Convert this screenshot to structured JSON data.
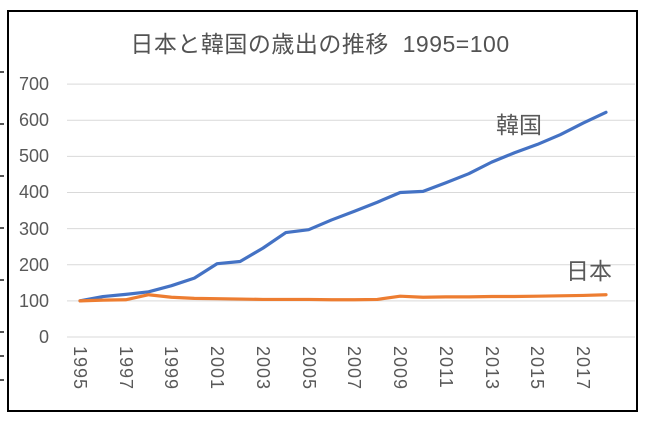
{
  "chart_data": {
    "type": "line",
    "title": "日本と韓国の歳出の推移  1995=100",
    "xlabel": "",
    "ylabel": "",
    "x": [
      1995,
      1996,
      1997,
      1998,
      1999,
      2000,
      2001,
      2002,
      2003,
      2004,
      2005,
      2006,
      2007,
      2008,
      2009,
      2010,
      2011,
      2012,
      2013,
      2014,
      2015,
      2016,
      2017,
      2018
    ],
    "x_tick_labels": [
      "1995",
      "1997",
      "1999",
      "2001",
      "2003",
      "2005",
      "2007",
      "2009",
      "2011",
      "2013",
      "2015",
      "2017"
    ],
    "y_ticks": [
      0,
      100,
      200,
      300,
      400,
      500,
      600,
      700
    ],
    "ylim": [
      0,
      700
    ],
    "grid": true,
    "legend_position": "inline-end-labels",
    "series": [
      {
        "name": "韓国",
        "color": "#4472C4",
        "values": [
          100,
          112,
          118,
          125,
          142,
          163,
          203,
          209,
          246,
          289,
          297,
          324,
          348,
          373,
          400,
          403,
          427,
          452,
          484,
          510,
          533,
          560,
          592,
          622
        ]
      },
      {
        "name": "日本",
        "color": "#ED7D31",
        "values": [
          100,
          102,
          103,
          117,
          110,
          107,
          106,
          105,
          104,
          104,
          104,
          103,
          103,
          104,
          113,
          110,
          111,
          111,
          112,
          112,
          113,
          114,
          115,
          117
        ]
      }
    ]
  },
  "styles": {
    "text_color": "#595959",
    "title_color": "#535353",
    "gridline_color": "#D9D9D9",
    "frame_color": "#000000",
    "background": "#FFFFFF"
  }
}
